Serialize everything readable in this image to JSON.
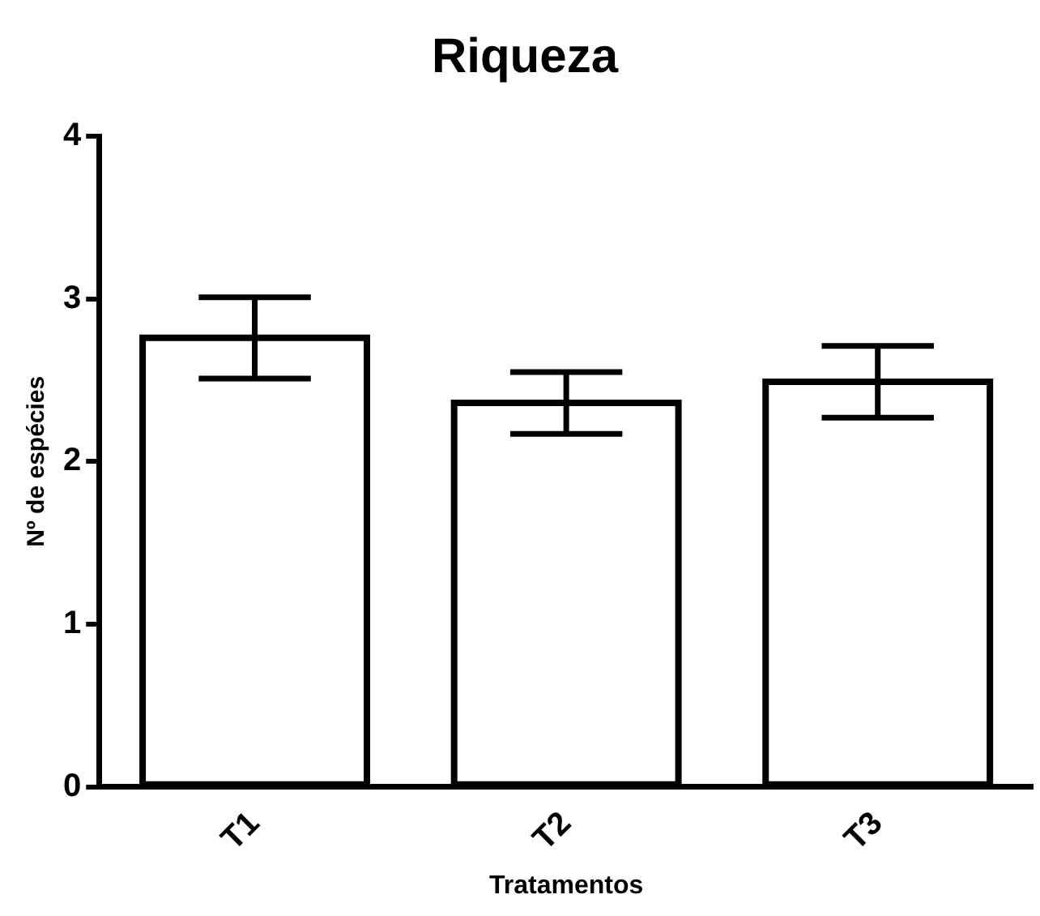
{
  "chart_data": {
    "type": "bar",
    "title": "Riqueza",
    "xlabel": "Tratamentos",
    "ylabel": "Nº de espécies",
    "categories": [
      "T1",
      "T2",
      "T3"
    ],
    "values": [
      2.76,
      2.36,
      2.49
    ],
    "errors": [
      0.25,
      0.19,
      0.22
    ],
    "color": "#000000",
    "ylim": [
      0,
      4
    ],
    "yticks": [
      0,
      1,
      2,
      3,
      4
    ],
    "grid": false,
    "legend": false
  }
}
